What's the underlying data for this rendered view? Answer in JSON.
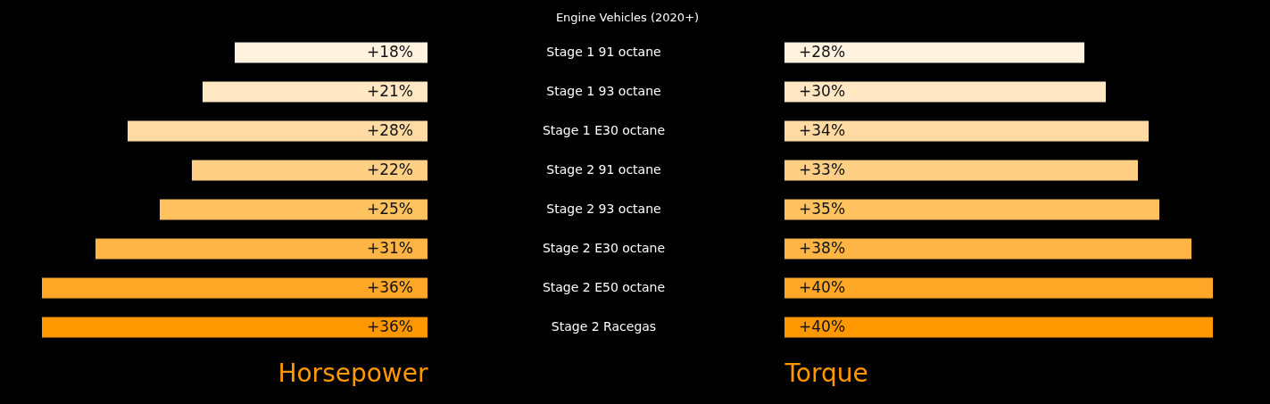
{
  "chart_data": [
    {
      "type": "bar",
      "orientation": "horizontal",
      "title": "Engine Vehicles (2020+)",
      "xlabel": "Horsepower",
      "categories": [
        "Stage 1 91 octane",
        "Stage 1 93 octane",
        "Stage 1 E30 octane",
        "Stage 2 91 octane",
        "Stage 2 93 octane",
        "Stage 2 E30 octane",
        "Stage 2 E50 octane",
        "Stage 2 Racegas"
      ],
      "values": [
        18,
        21,
        28,
        22,
        25,
        31,
        36,
        36
      ],
      "value_labels": [
        "+18%",
        "+21%",
        "+28%",
        "+22%",
        "+25%",
        "+31%",
        "+36%",
        "+36%"
      ],
      "colors": [
        "#fff3e0",
        "#ffe7c4",
        "#ffdba3",
        "#ffcf85",
        "#ffc25f",
        "#ffb446",
        "#ffa726",
        "#ff9800"
      ],
      "tick_labels": "y"
    },
    {
      "type": "bar",
      "orientation": "horizontal",
      "xlabel": "Torque",
      "categories": [
        null,
        null,
        null,
        null,
        null,
        null,
        null,
        null
      ],
      "values": [
        28,
        30,
        34,
        33,
        35,
        38,
        40,
        40
      ],
      "value_labels": [
        "+28%",
        "+30%",
        "+34%",
        "+33%",
        "+35%",
        "+38%",
        "+40%",
        "+40%"
      ],
      "colors": [
        "#fff3e0",
        "#ffe7c4",
        "#ffdba3",
        "#ffcf85",
        "#ffc25f",
        "#ffb446",
        "#ffa726",
        "#ff9800"
      ],
      "tick_labels": false
    }
  ]
}
